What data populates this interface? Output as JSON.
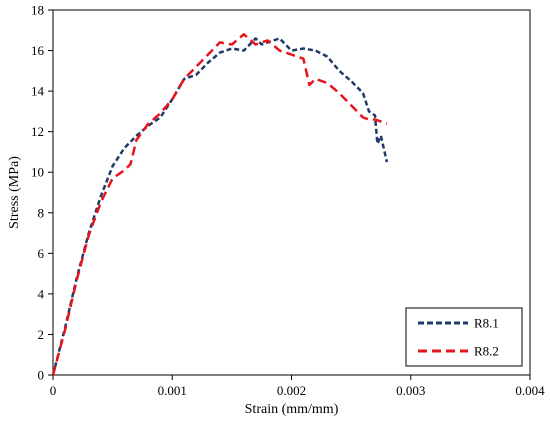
{
  "chart_data": {
    "type": "line",
    "title": "",
    "xlabel": "Strain (mm/mm)",
    "ylabel": "Stress (MPa)",
    "xlim": [
      0,
      0.004
    ],
    "ylim": [
      0,
      18
    ],
    "x_ticks": [
      "0",
      "0.001",
      "0.002",
      "0.003",
      "0.004"
    ],
    "y_ticks": [
      "0",
      "2",
      "4",
      "6",
      "8",
      "10",
      "12",
      "14",
      "16",
      "18"
    ],
    "grid": false,
    "legend_position": "bottom-right",
    "series": [
      {
        "name": "R8.1",
        "color": "#1f3a68",
        "style": "dashed",
        "x": [
          0,
          0.0001,
          0.0002,
          0.0003,
          0.0004,
          0.0005,
          0.0006,
          0.0007,
          0.0008,
          0.0009,
          0.001,
          0.0011,
          0.0012,
          0.0013,
          0.0014,
          0.0015,
          0.0016,
          0.0017,
          0.00175,
          0.0018,
          0.0019,
          0.00195,
          0.002,
          0.0021,
          0.0022,
          0.0023,
          0.0024,
          0.0025,
          0.0026,
          0.00265,
          0.0027,
          0.00272,
          0.00275,
          0.0028
        ],
        "y": [
          0,
          2.3,
          4.8,
          7.0,
          8.8,
          10.3,
          11.2,
          11.8,
          12.3,
          12.7,
          13.6,
          14.6,
          14.8,
          15.4,
          15.9,
          16.1,
          16.0,
          16.6,
          16.3,
          16.4,
          16.6,
          16.3,
          16.0,
          16.1,
          16.0,
          15.7,
          15.0,
          14.5,
          13.9,
          13.0,
          12.8,
          11.4,
          11.8,
          10.5
        ]
      },
      {
        "name": "R8.2",
        "color": "#e8141c",
        "style": "dashed",
        "x": [
          0,
          0.0001,
          0.0002,
          0.0003,
          0.0004,
          0.0005,
          0.0006,
          0.00065,
          0.0007,
          0.0008,
          0.0009,
          0.001,
          0.0011,
          0.0012,
          0.0013,
          0.0014,
          0.0015,
          0.0016,
          0.0017,
          0.0018,
          0.0019,
          0.002,
          0.0021,
          0.00215,
          0.0022,
          0.0023,
          0.0024,
          0.0025,
          0.0026,
          0.00265,
          0.0027,
          0.0028
        ],
        "y": [
          0,
          2.2,
          4.7,
          6.9,
          8.5,
          9.7,
          10.1,
          10.4,
          11.6,
          12.4,
          12.9,
          13.6,
          14.6,
          15.2,
          15.8,
          16.4,
          16.3,
          16.8,
          16.3,
          16.5,
          16.0,
          15.8,
          15.6,
          14.3,
          14.6,
          14.4,
          13.9,
          13.3,
          12.7,
          12.6,
          12.6,
          12.4
        ]
      }
    ]
  }
}
